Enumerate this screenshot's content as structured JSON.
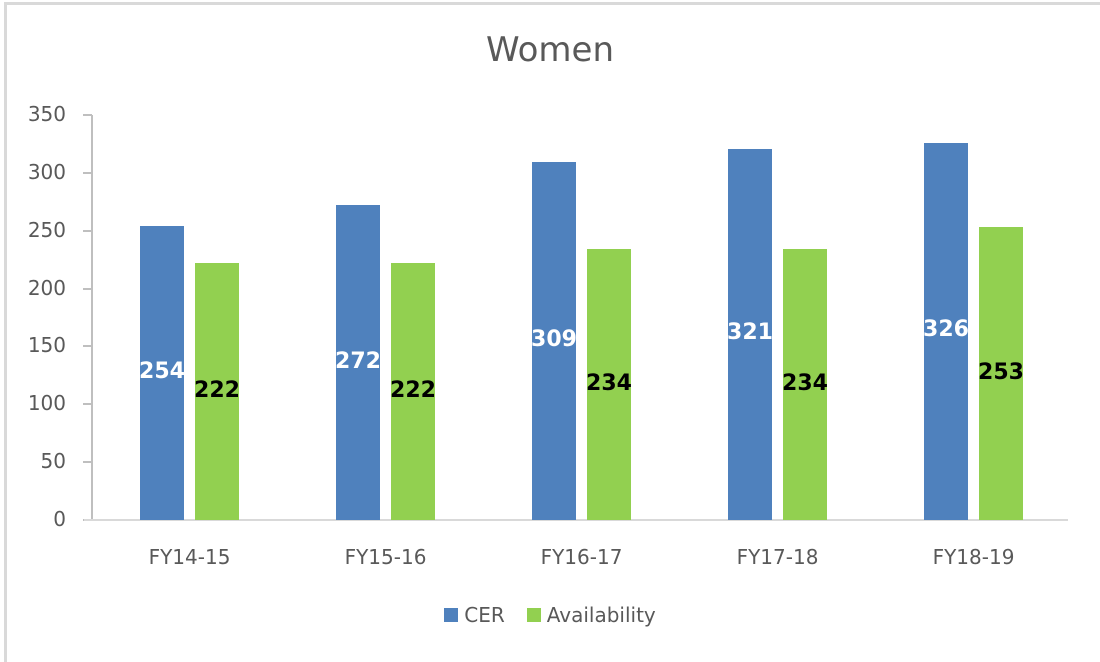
{
  "chart_data": {
    "type": "bar",
    "title": "Women",
    "categories": [
      "FY14-15",
      "FY15-16",
      "FY16-17",
      "FY17-18",
      "FY18-19"
    ],
    "series": [
      {
        "name": "CER",
        "color": "#4f81bd",
        "label_color": "#ffffff",
        "values": [
          254,
          272,
          309,
          321,
          326
        ]
      },
      {
        "name": "Availability",
        "color": "#92d050",
        "label_color": "#000000",
        "values": [
          222,
          222,
          234,
          234,
          253
        ]
      }
    ],
    "xlabel": "",
    "ylabel": "",
    "ylim": [
      0,
      350
    ],
    "yticks": [
      0,
      50,
      100,
      150,
      200,
      250,
      300,
      350
    ],
    "grid": false,
    "legend_position": "bottom"
  }
}
